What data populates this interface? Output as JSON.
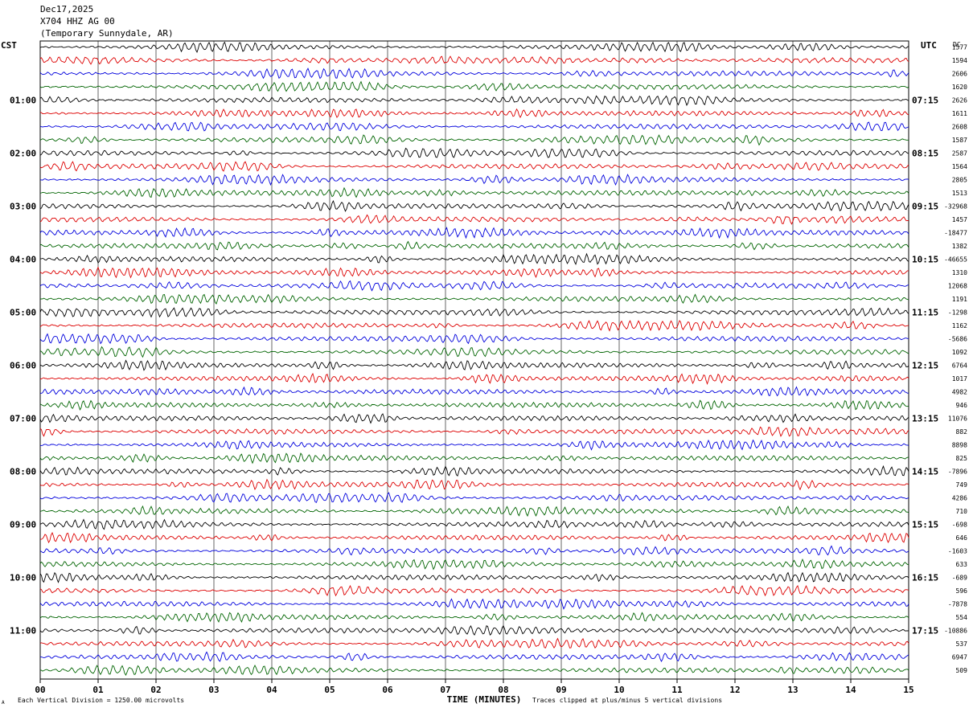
{
  "header": {
    "date": "Dec17,2025",
    "station": "X704 HHZ AG 00",
    "location": "(Temporary Sunnydale, AR)"
  },
  "left_tz": "CST",
  "right_tz": "UTC",
  "dc_label": "DC",
  "footer": {
    "scale_note": "Each Vertical Division = 1250.00 microvolts",
    "xlabel": "TIME (MINUTES)",
    "clip_note": "Traces clipped at plus/minus 5 vertical divisions",
    "corner_mark": "A"
  },
  "colors": {
    "black": "#000000",
    "red": "#dd0000",
    "blue": "#0000dd",
    "green": "#006400",
    "grid": "#000000"
  },
  "chart_data": {
    "type": "line",
    "title": "Dec17,2025",
    "xlabel": "TIME (MINUTES)",
    "xlim": [
      0,
      15
    ],
    "x_ticks": [
      "00",
      "01",
      "02",
      "03",
      "04",
      "05",
      "06",
      "07",
      "08",
      "09",
      "10",
      "11",
      "12",
      "13",
      "14",
      "15"
    ],
    "trace_count": 48,
    "trace_color_cycle": [
      "black",
      "red",
      "blue",
      "green"
    ],
    "left_time_labels": [
      "01:00",
      "02:00",
      "03:00",
      "04:00",
      "05:00",
      "06:00",
      "07:00",
      "08:00",
      "09:00",
      "10:00",
      "11:00"
    ],
    "right_time_labels": [
      "07:15",
      "08:15",
      "09:15",
      "10:15",
      "11:15",
      "12:15",
      "13:15",
      "14:15",
      "15:15",
      "16:15",
      "17:15"
    ],
    "dc_values": [
      "1577",
      "1594",
      "2606",
      "1620",
      "2626",
      "1611",
      "2608",
      "1587",
      "2587",
      "1564",
      "2805",
      "1513",
      "-32968",
      "1457",
      "-18477",
      "1382",
      "-46655",
      "1310",
      "12068",
      "1191",
      "-1298",
      "1162",
      "-5686",
      "1092",
      "6764",
      "1017",
      "4982",
      "946",
      "11076",
      "882",
      "8898",
      "825",
      "-7896",
      "749",
      "4286",
      "710",
      "-698",
      "646",
      "-1603",
      "633",
      "-689",
      "596",
      "-7878",
      "554",
      "-10886",
      "537",
      "6947",
      "509"
    ],
    "vertical_division_microvolts": 1250.0,
    "clip_divisions": 5
  }
}
